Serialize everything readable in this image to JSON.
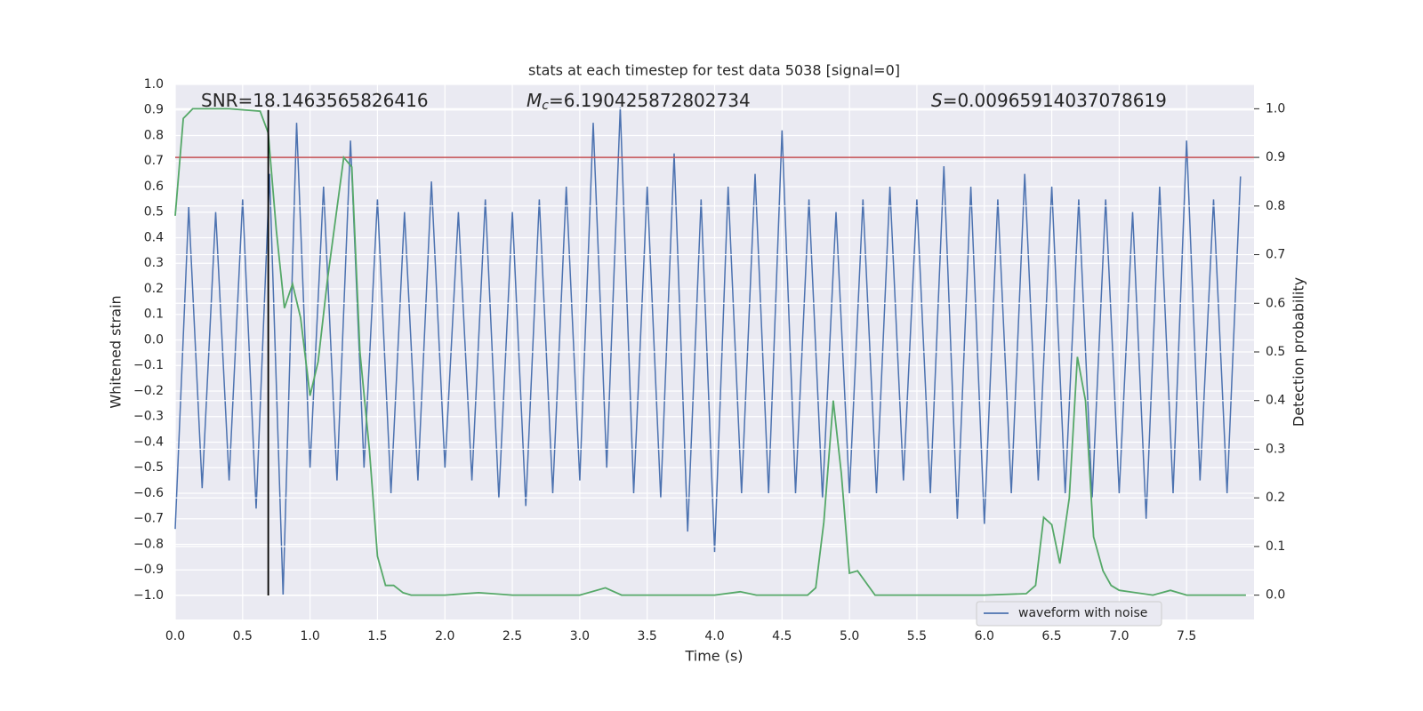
{
  "chart_data": {
    "type": "line",
    "title": "stats at each timestep for test data 5038 [signal=0]",
    "x_label": "Time (s)",
    "y_label": "Whitened strain",
    "y2_label": "Detection probability",
    "grid": true,
    "background": "#eaeaf2",
    "legend": "lower right",
    "xlim": [
      0,
      8.0
    ],
    "ylim": [
      -1.094,
      1.0
    ],
    "y2lim": [
      -0.05,
      1.05
    ],
    "xticks": [
      {
        "value": 0,
        "label": "0.0"
      },
      {
        "value": 0.5,
        "label": "0.5"
      },
      {
        "value": 1,
        "label": "1.0"
      },
      {
        "value": 1.5,
        "label": "1.5"
      },
      {
        "value": 2,
        "label": "2.0"
      },
      {
        "value": 2.5,
        "label": "2.5"
      },
      {
        "value": 3,
        "label": "3.0"
      },
      {
        "value": 3.5,
        "label": "3.5"
      },
      {
        "value": 4,
        "label": "4.0"
      },
      {
        "value": 4.5,
        "label": "4.5"
      },
      {
        "value": 5,
        "label": "5.0"
      },
      {
        "value": 5.5,
        "label": "5.5"
      },
      {
        "value": 6,
        "label": "6.0"
      },
      {
        "value": 6.5,
        "label": "6.5"
      },
      {
        "value": 7,
        "label": "7.0"
      },
      {
        "value": 7.5,
        "label": "7.5"
      }
    ],
    "yticks": [
      {
        "value": -1.0,
        "label": "−1.0"
      },
      {
        "value": -0.9,
        "label": "−0.9"
      },
      {
        "value": -0.8,
        "label": "−0.8"
      },
      {
        "value": -0.7,
        "label": "−0.7"
      },
      {
        "value": -0.6,
        "label": "−0.6"
      },
      {
        "value": -0.5,
        "label": "−0.5"
      },
      {
        "value": -0.4,
        "label": "−0.4"
      },
      {
        "value": -0.3,
        "label": "−0.3"
      },
      {
        "value": -0.2,
        "label": "−0.2"
      },
      {
        "value": -0.1,
        "label": "−0.1"
      },
      {
        "value": 0,
        "label": "0.0"
      },
      {
        "value": 0.1,
        "label": "0.1"
      },
      {
        "value": 0.2,
        "label": "0.2"
      },
      {
        "value": 0.3,
        "label": "0.3"
      },
      {
        "value": 0.4,
        "label": "0.4"
      },
      {
        "value": 0.5,
        "label": "0.5"
      },
      {
        "value": 0.6,
        "label": "0.6"
      },
      {
        "value": 0.7,
        "label": "0.7"
      },
      {
        "value": 0.8,
        "label": "0.8"
      },
      {
        "value": 0.9,
        "label": "0.9"
      },
      {
        "value": 1.0,
        "label": "1.0"
      }
    ],
    "y2ticks": [
      {
        "value": 0,
        "label": "0.0"
      },
      {
        "value": 0.1,
        "label": "0.1"
      },
      {
        "value": 0.2,
        "label": "0.2"
      },
      {
        "value": 0.3,
        "label": "0.3"
      },
      {
        "value": 0.4,
        "label": "0.4"
      },
      {
        "value": 0.5,
        "label": "0.5"
      },
      {
        "value": 0.6,
        "label": "0.6"
      },
      {
        "value": 0.7,
        "label": "0.7"
      },
      {
        "value": 0.8,
        "label": "0.8"
      },
      {
        "value": 0.9,
        "label": "0.9"
      },
      {
        "value": 1.0,
        "label": "1.0"
      }
    ],
    "annotations": [
      {
        "text": "SNR=18.1463565826416"
      },
      {
        "symbol": "M",
        "subscript": "c",
        "text": "=6.190425872802734"
      },
      {
        "symbol": "S",
        "text": "=0.00965914037078619"
      }
    ],
    "series": [
      {
        "name": "waveform with noise",
        "color": "#4c72b0",
        "x": [
          0.0,
          0.1,
          0.2,
          0.3,
          0.4,
          0.5,
          0.6,
          0.7,
          0.8,
          0.9,
          1.0,
          1.1,
          1.2,
          1.3,
          1.4,
          1.5,
          1.6,
          1.7,
          1.8,
          1.9,
          2.0,
          2.1,
          2.2,
          2.3,
          2.4,
          2.5,
          2.6,
          2.7,
          2.8,
          2.9,
          3.0,
          3.1,
          3.2,
          3.3,
          3.4,
          3.5,
          3.6,
          3.7,
          3.8,
          3.9,
          4.0,
          4.1,
          4.2,
          4.3,
          4.4,
          4.5,
          4.6,
          4.7,
          4.8,
          4.9,
          5.0,
          5.1,
          5.2,
          5.3,
          5.4,
          5.5,
          5.6,
          5.7,
          5.8,
          5.9,
          6.0,
          6.1,
          6.2,
          6.3,
          6.4,
          6.5,
          6.6,
          6.7,
          6.8,
          6.9,
          7.0,
          7.1,
          7.2,
          7.3,
          7.4,
          7.5,
          7.6,
          7.7,
          7.8,
          7.9
        ],
        "values": [
          -0.74,
          0.52,
          -0.58,
          0.5,
          -0.55,
          0.55,
          -0.66,
          0.65,
          -1.0,
          0.85,
          -0.5,
          0.6,
          -0.55,
          0.78,
          -0.5,
          0.55,
          -0.6,
          0.5,
          -0.55,
          0.62,
          -0.5,
          0.5,
          -0.55,
          0.55,
          -0.62,
          0.5,
          -0.65,
          0.55,
          -0.6,
          0.6,
          -0.55,
          0.85,
          -0.5,
          0.91,
          -0.6,
          0.6,
          -0.62,
          0.73,
          -0.75,
          0.55,
          -0.83,
          0.6,
          -0.6,
          0.65,
          -0.6,
          0.82,
          -0.6,
          0.55,
          -0.62,
          0.5,
          -0.6,
          0.55,
          -0.6,
          0.6,
          -0.55,
          0.55,
          -0.6,
          0.68,
          -0.7,
          0.6,
          -0.72,
          0.55,
          -0.6,
          0.65,
          -0.55,
          0.6,
          -0.6,
          0.55,
          -0.62,
          0.55,
          -0.6,
          0.5,
          -0.7,
          0.6,
          -0.6,
          0.78,
          -0.55,
          0.55,
          -0.6,
          0.64
        ]
      }
    ],
    "probability": {
      "color": "#55a868",
      "axis": "y2",
      "x": [
        0.0,
        0.06,
        0.13,
        0.4,
        0.63,
        0.69,
        0.75,
        0.81,
        0.87,
        0.93,
        1.0,
        1.06,
        1.13,
        1.25,
        1.31,
        1.37,
        1.44,
        1.5,
        1.56,
        1.62,
        1.69,
        1.75,
        2.0,
        2.25,
        2.5,
        3.0,
        3.19,
        3.31,
        3.5,
        4.0,
        4.19,
        4.31,
        4.69,
        4.75,
        4.81,
        4.88,
        4.94,
        5.0,
        5.06,
        5.19,
        5.5,
        6.0,
        6.31,
        6.38,
        6.44,
        6.5,
        6.56,
        6.63,
        6.69,
        6.75,
        6.81,
        6.88,
        6.94,
        7.0,
        7.25,
        7.38,
        7.5,
        7.94
      ],
      "values": [
        0.78,
        0.98,
        1.0,
        1.0,
        0.995,
        0.95,
        0.75,
        0.59,
        0.64,
        0.57,
        0.41,
        0.48,
        0.65,
        0.9,
        0.88,
        0.5,
        0.3,
        0.08,
        0.02,
        0.02,
        0.005,
        0.0,
        0.0,
        0.005,
        0.0,
        0.0,
        0.015,
        0.0,
        0.0,
        0.0,
        0.007,
        0.0,
        0.0,
        0.015,
        0.15,
        0.4,
        0.25,
        0.045,
        0.05,
        0.0,
        0.0,
        0.0,
        0.003,
        0.02,
        0.16,
        0.145,
        0.065,
        0.2,
        0.49,
        0.4,
        0.12,
        0.05,
        0.02,
        0.01,
        0.0,
        0.01,
        0.0,
        0.0
      ]
    },
    "hlines": [
      {
        "value": 0.9,
        "axis": "y2",
        "color": "#c44e52"
      }
    ],
    "vlines": [
      {
        "x": 0.69,
        "ymin": -1.0,
        "ymax": 0.9,
        "color": "#000000"
      }
    ]
  }
}
